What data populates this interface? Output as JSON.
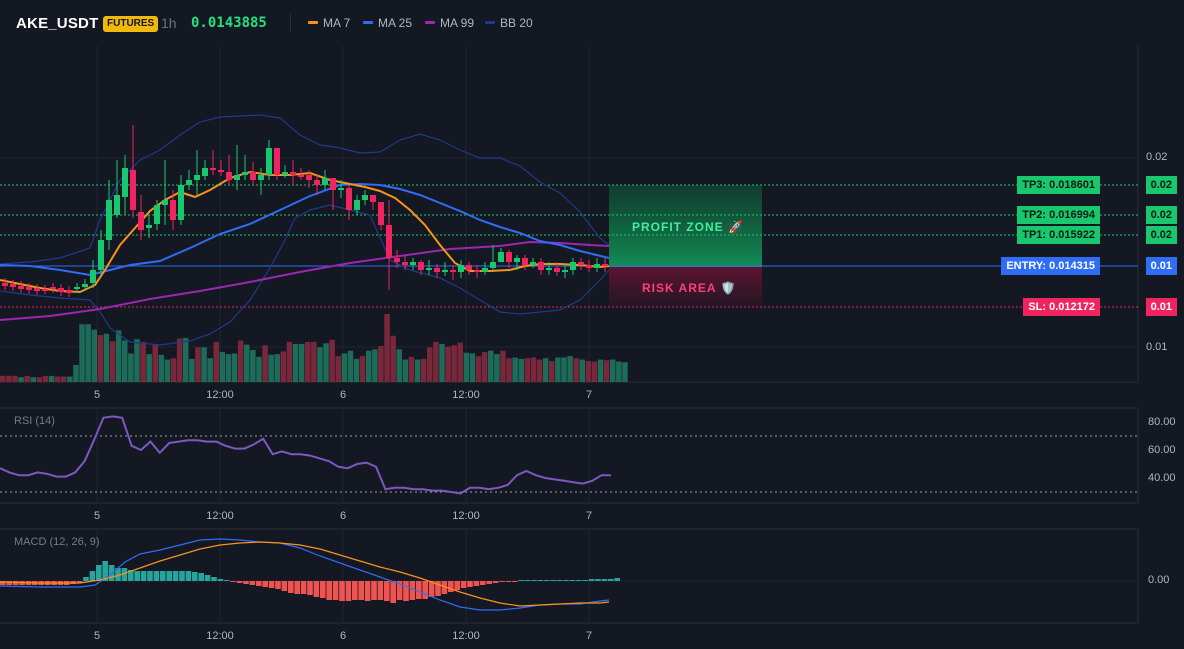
{
  "header": {
    "symbol": "AKE_USDT",
    "badge": "FUTURES",
    "timeframe": "1h",
    "price": "0.0143885",
    "legend": [
      {
        "label": "MA 7",
        "color": "#f7931a"
      },
      {
        "label": "MA 25",
        "color": "#2f6df6"
      },
      {
        "label": "MA 99",
        "color": "#9c27b0"
      },
      {
        "label": "BB 20",
        "color": "#1e3a8a"
      }
    ]
  },
  "price_axis": {
    "labels": [
      "0.02",
      "0.01"
    ]
  },
  "levels": {
    "tp3": {
      "label": "TP3: 0.018601",
      "value": "0.02",
      "color": "#19c86e"
    },
    "tp2": {
      "label": "TP2: 0.016994",
      "value": "0.02",
      "color": "#19c86e"
    },
    "tp1": {
      "label": "TP1: 0.015922",
      "value": "0.02",
      "color": "#19c86e"
    },
    "entry": {
      "label": "ENTRY: 0.014315",
      "value": "0.01",
      "color": "#2f6df6"
    },
    "sl": {
      "label": "SL: 0.012172",
      "value": "0.01",
      "color": "#f0245f"
    }
  },
  "zones": {
    "profit": "PROFIT ZONE 🚀",
    "risk": "RISK AREA 🛡️"
  },
  "time_axis": {
    "labels": [
      "5",
      "12:00",
      "6",
      "12:00",
      "7"
    ]
  },
  "rsi": {
    "label": "RSI (14)",
    "axis": [
      "80.00",
      "60.00",
      "40.00"
    ],
    "values": [
      47,
      44,
      42,
      42,
      44,
      43,
      41,
      41,
      44,
      52,
      67,
      83,
      84,
      83,
      63,
      60,
      66,
      58,
      65,
      66,
      67,
      67,
      66,
      66,
      63,
      61,
      61,
      64,
      68,
      57,
      59,
      57,
      57,
      56,
      54,
      52,
      48,
      47,
      50,
      51,
      48,
      32,
      33,
      33,
      32,
      32,
      31,
      31,
      30,
      29,
      33,
      33,
      32,
      33,
      35,
      42,
      45,
      42,
      40,
      39,
      38,
      37,
      36,
      38,
      42,
      42
    ]
  },
  "macd": {
    "label": "MACD (12, 26, 9)",
    "axis": [
      "0.00"
    ]
  },
  "chart_data": {
    "type": "candlestick",
    "symbol": "AKE_USDT",
    "timeframe": "1h",
    "last_price": 0.0143885,
    "overlays": [
      "MA 7",
      "MA 25",
      "MA 99",
      "BB 20"
    ],
    "levels": {
      "tp3": 0.018601,
      "tp2": 0.016994,
      "tp1": 0.015922,
      "entry": 0.014315,
      "sl": 0.012172
    },
    "volume": [
      9,
      9,
      9,
      7,
      9,
      7,
      7,
      9,
      9,
      8,
      8,
      8,
      25,
      85,
      85,
      77,
      69,
      71,
      60,
      76,
      61,
      42,
      63,
      59,
      41,
      56,
      40,
      33,
      35,
      64,
      65,
      34,
      51,
      51,
      35,
      59,
      44,
      41,
      42,
      61,
      55,
      47,
      37,
      54,
      40,
      41,
      45,
      59,
      56,
      56,
      59,
      59,
      51,
      57,
      62,
      38,
      42,
      46,
      34,
      38,
      46,
      48,
      53,
      100,
      68,
      48,
      33,
      37,
      33,
      34,
      51,
      59,
      56,
      52,
      54,
      58,
      43,
      42,
      38,
      44,
      46,
      41,
      46,
      35,
      36,
      34,
      35,
      36,
      33,
      35,
      31,
      36,
      36,
      38,
      35,
      33,
      31,
      30,
      33,
      32,
      33,
      30,
      29
    ]
  }
}
